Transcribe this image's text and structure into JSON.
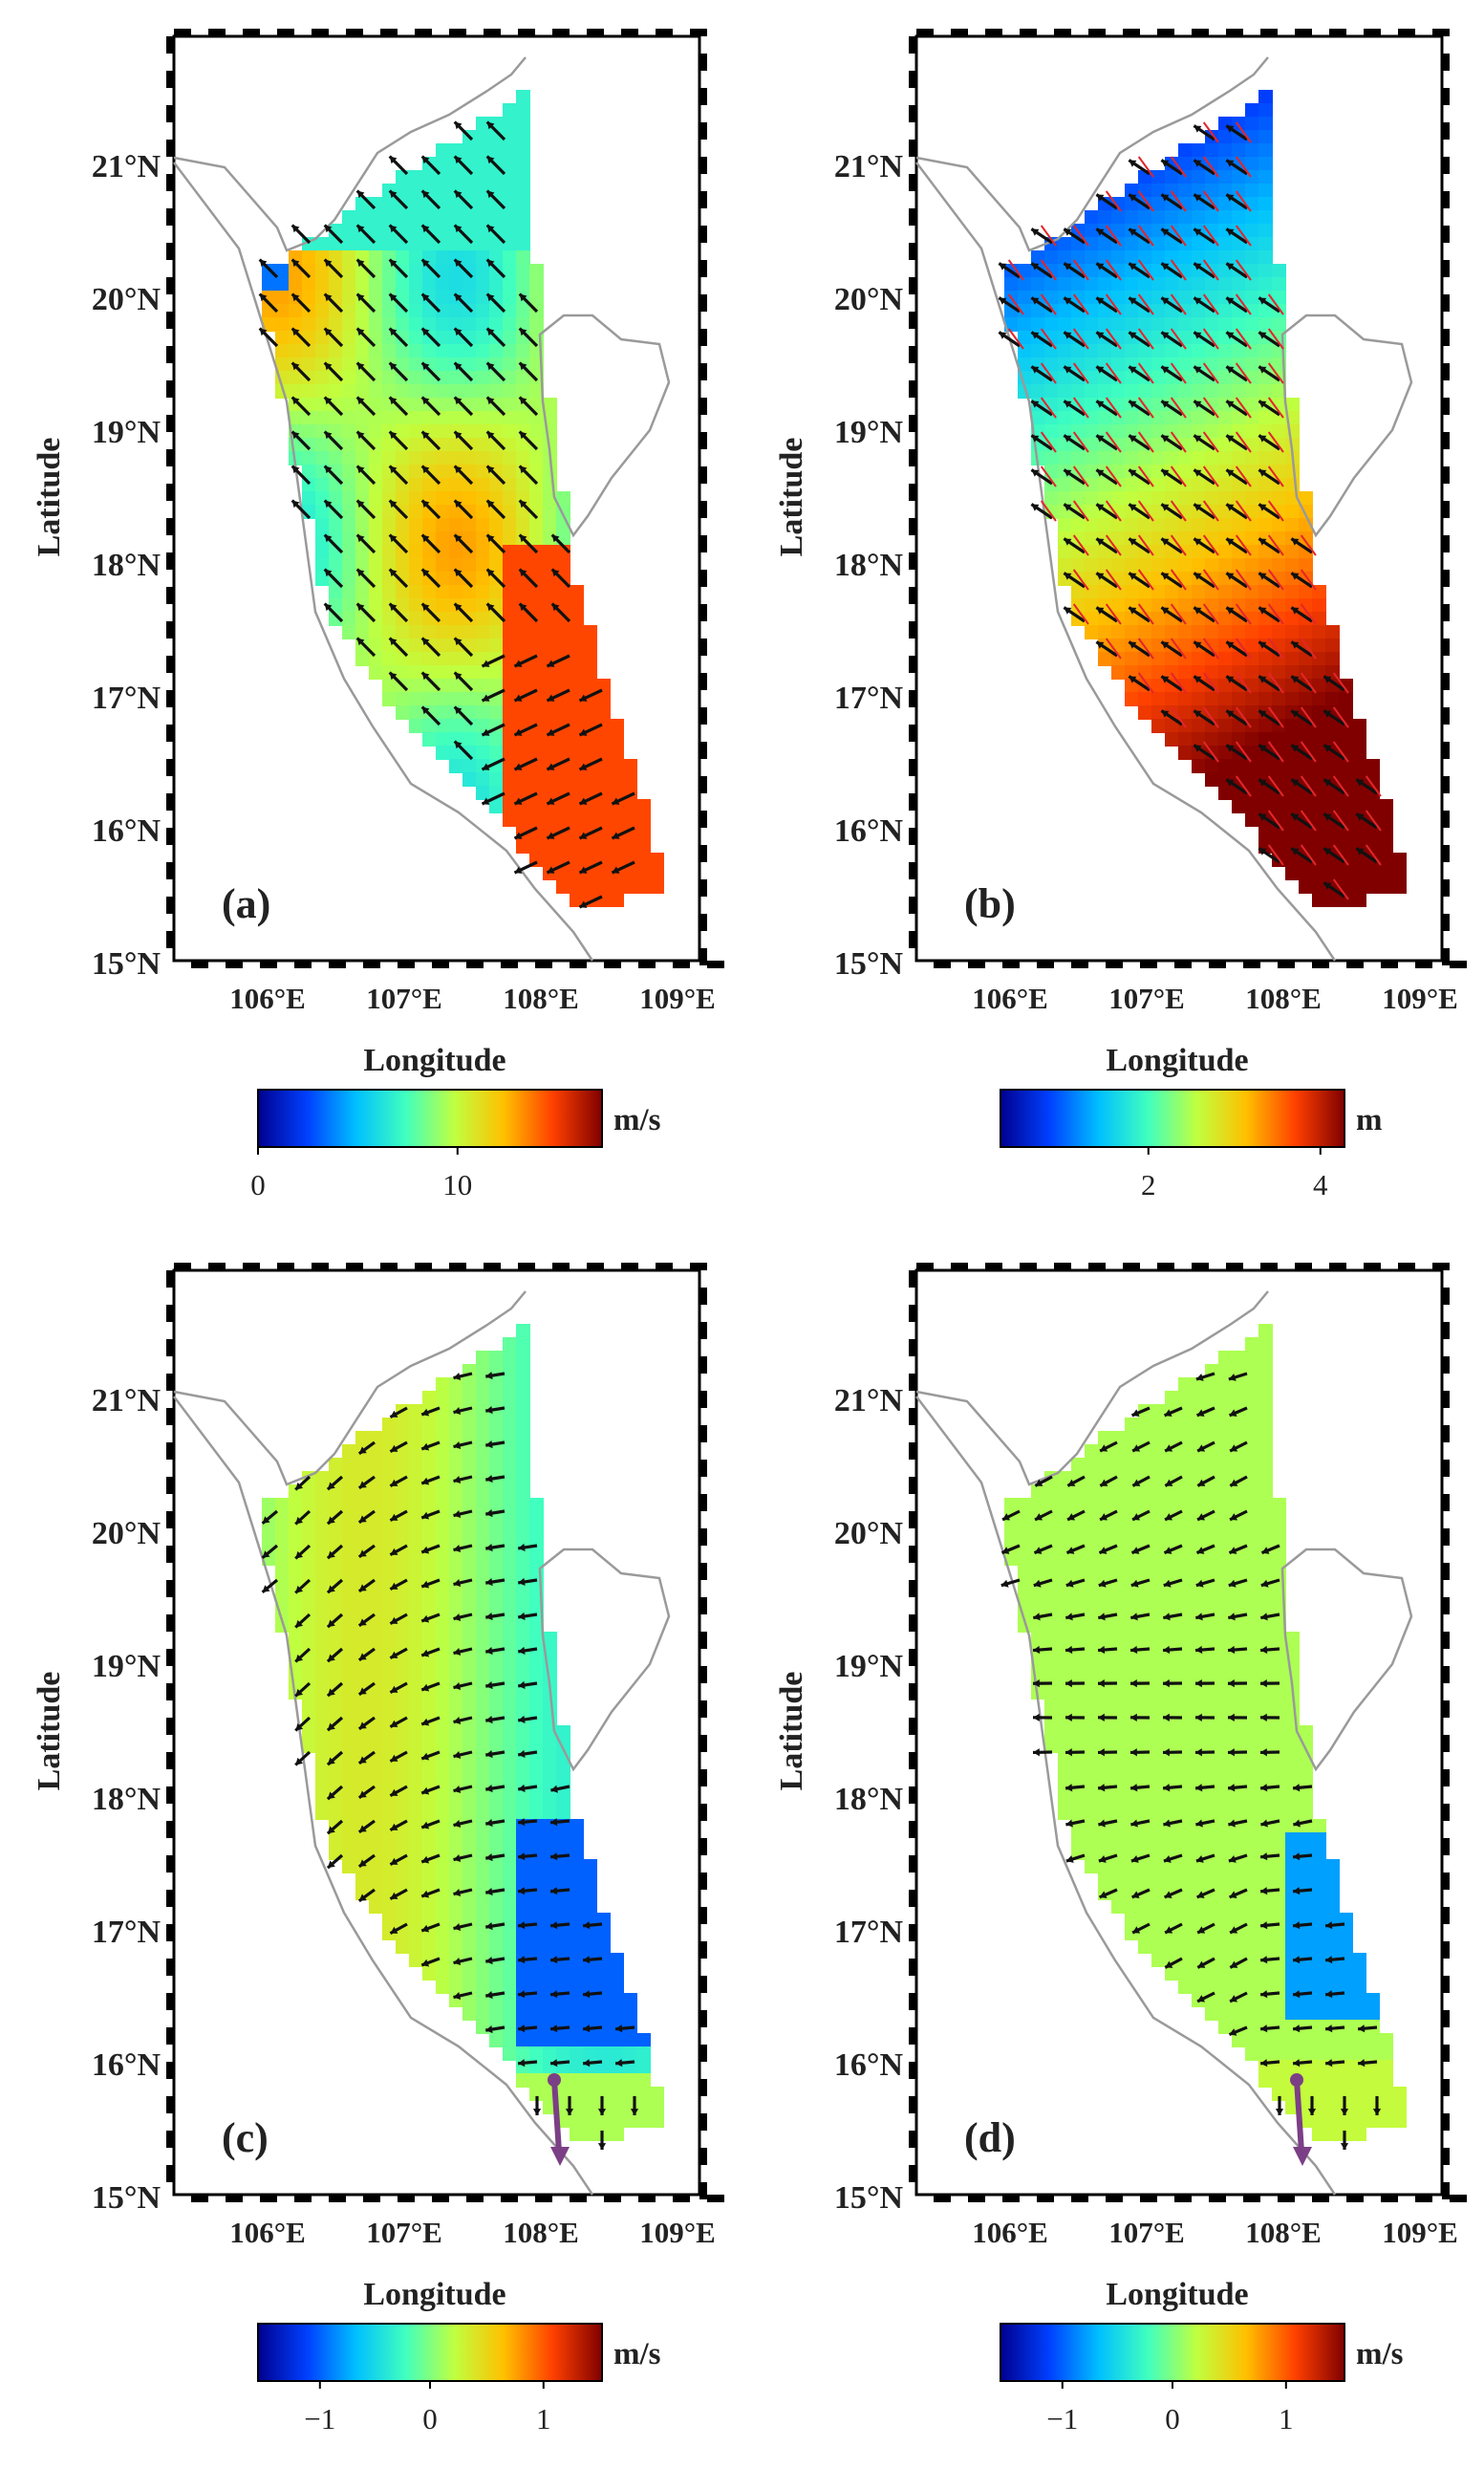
{
  "panels": [
    {
      "id": "a",
      "label": "(a)",
      "axis_y_title": "Latitude",
      "axis_x_title": "Longitude",
      "lat_ticks": [
        "21°N",
        "20°N",
        "19°N",
        "18°N",
        "17°N",
        "16°N",
        "15°N"
      ],
      "lon_ticks": [
        "106°E",
        "107°E",
        "108°E",
        "109°E"
      ],
      "colorbar": {
        "unit": "m/s",
        "ticks": [
          "0",
          "10"
        ],
        "colormap": "jet"
      },
      "field": "wind speed",
      "arrow_color": "#111111"
    },
    {
      "id": "b",
      "label": "(b)",
      "axis_y_title": "Latitude",
      "axis_x_title": "Longitude",
      "lat_ticks": [
        "21°N",
        "20°N",
        "19°N",
        "18°N",
        "17°N",
        "16°N",
        "15°N"
      ],
      "lon_ticks": [
        "106°E",
        "107°E",
        "108°E",
        "109°E"
      ],
      "colorbar": {
        "unit": "m",
        "ticks": [
          "2",
          "4"
        ],
        "colormap": "jet"
      },
      "field": "wave height",
      "arrow_color": "#111111",
      "secondary_arrow_color": "#e3262b"
    },
    {
      "id": "c",
      "label": "(c)",
      "axis_y_title": "Latitude",
      "axis_x_title": "Longitude",
      "lat_ticks": [
        "21°N",
        "20°N",
        "19°N",
        "18°N",
        "17°N",
        "16°N",
        "15°N"
      ],
      "lon_ticks": [
        "106°E",
        "107°E",
        "108°E",
        "109°E"
      ],
      "colorbar": {
        "unit": "m/s",
        "ticks": [
          "−1",
          "0",
          "1"
        ],
        "colormap": "jet"
      },
      "field": "current",
      "arrow_color": "#111111",
      "reference_arrow_color": "#7b3f86"
    },
    {
      "id": "d",
      "label": "(d)",
      "axis_y_title": "Latitude",
      "axis_x_title": "Longitude",
      "lat_ticks": [
        "21°N",
        "20°N",
        "19°N",
        "18°N",
        "17°N",
        "16°N",
        "15°N"
      ],
      "lon_ticks": [
        "106°E",
        "107°E",
        "108°E",
        "109°E"
      ],
      "colorbar": {
        "unit": "m/s",
        "ticks": [
          "−1",
          "0",
          "1"
        ],
        "colormap": "jet"
      },
      "field": "current",
      "arrow_color": "#111111",
      "reference_arrow_color": "#7b3f86"
    }
  ],
  "colors": {
    "coastline": "#9a9a9a",
    "frame": "#000000",
    "jet": [
      "#00008f",
      "#0040ff",
      "#00c0ff",
      "#40ffbf",
      "#c0ff40",
      "#ffc000",
      "#ff4000",
      "#800000"
    ]
  }
}
